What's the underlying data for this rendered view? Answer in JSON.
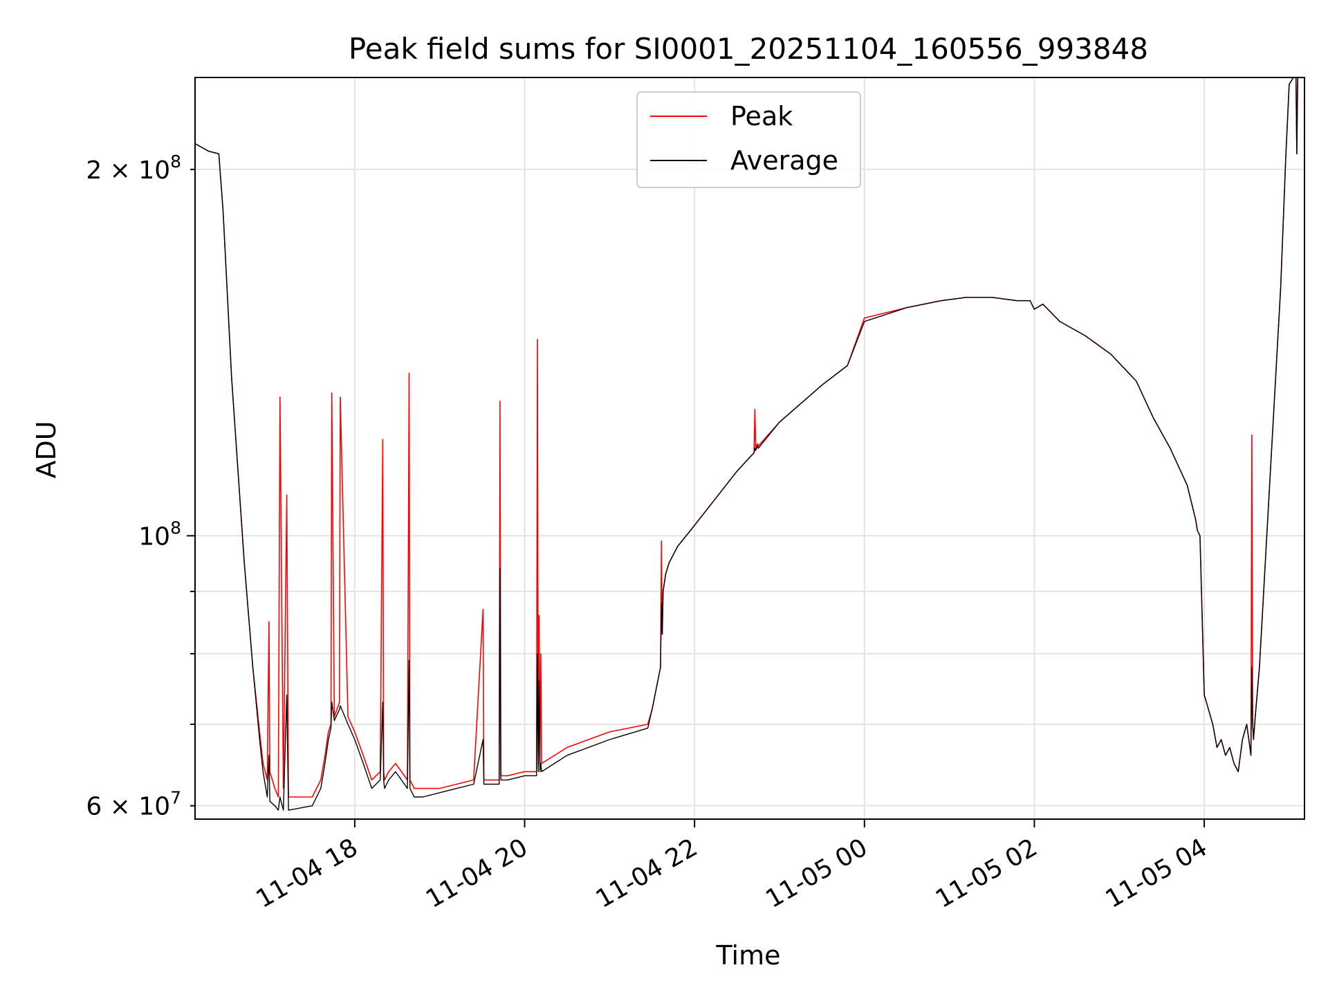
{
  "chart_data": {
    "type": "line",
    "title": "Peak field sums for SI0001_20251104_160556_993848",
    "xlabel": "Time",
    "ylabel": "ADU",
    "yscale": "log",
    "ylim": [
      58500000,
      238000000
    ],
    "xlim_hours": [
      16.12,
      29.18
    ],
    "x_ticks": [
      {
        "hour": 18,
        "label": "11-04 18"
      },
      {
        "hour": 20,
        "label": "11-04 20"
      },
      {
        "hour": 22,
        "label": "11-04 22"
      },
      {
        "hour": 24,
        "label": "11-05 00"
      },
      {
        "hour": 26,
        "label": "11-05 02"
      },
      {
        "hour": 28,
        "label": "11-05 04"
      }
    ],
    "y_major_ticks": [
      {
        "value": 100000000,
        "label_base": "10",
        "label_exp": "8"
      }
    ],
    "y_minor_ticks": [
      {
        "value": 60000000,
        "label_base": "6 × 10",
        "label_exp": "7"
      },
      {
        "value": 70000000,
        "label_base": "",
        "label_exp": ""
      },
      {
        "value": 80000000,
        "label_base": "",
        "label_exp": ""
      },
      {
        "value": 90000000,
        "label_base": "",
        "label_exp": ""
      },
      {
        "value": 200000000,
        "label_base": "2 × 10",
        "label_exp": "8"
      }
    ],
    "grid": true,
    "legend_position": "top-center",
    "series": [
      {
        "name": "Peak",
        "color": "#ff0000",
        "hours": [
          16.12,
          16.28,
          16.4,
          16.45,
          16.55,
          16.7,
          16.8,
          16.88,
          16.92,
          16.97,
          16.99,
          17.0,
          17.06,
          17.1,
          17.12,
          17.16,
          17.2,
          17.22,
          17.5,
          17.6,
          17.65,
          17.69,
          17.72,
          17.73,
          17.76,
          17.82,
          17.83,
          17.92,
          18.0,
          18.1,
          18.2,
          18.3,
          18.33,
          18.34,
          18.35,
          18.4,
          18.48,
          18.55,
          18.62,
          18.64,
          18.65,
          18.7,
          18.8,
          19.0,
          19.2,
          19.4,
          19.51,
          19.52,
          19.53,
          19.6,
          19.7,
          19.71,
          19.72,
          19.8,
          20.0,
          20.14,
          20.15,
          20.16,
          20.17,
          20.18,
          20.19,
          20.2,
          20.5,
          21.0,
          21.45,
          21.5,
          21.6,
          21.61,
          21.62,
          21.63,
          21.66,
          21.7,
          21.8,
          22.0,
          22.5,
          22.7,
          22.71,
          22.72,
          22.73,
          22.74,
          22.75,
          23.0,
          23.5,
          23.8,
          24.0,
          24.5,
          24.9,
          25.2,
          25.5,
          25.8,
          25.95,
          26.0,
          26.1,
          26.3,
          26.6,
          26.9,
          27.2,
          27.4,
          27.6,
          27.8,
          27.9,
          27.92,
          27.95,
          28.0,
          28.1,
          28.15,
          28.2,
          28.25,
          28.3,
          28.35,
          28.4,
          28.45,
          28.5,
          28.55,
          28.56,
          28.57,
          28.58,
          28.6,
          28.65,
          28.7,
          28.8,
          28.9,
          28.96,
          29.0,
          29.05,
          29.07,
          29.08,
          29.09,
          29.1
        ],
        "values": [
          210000000,
          207000000,
          206000000,
          185000000,
          135000000,
          95000000,
          78000000,
          69000000,
          65000000,
          63000000,
          85000000,
          64000000,
          62000000,
          61000000,
          130000000,
          62000000,
          108000000,
          61000000,
          61000000,
          63000000,
          66000000,
          69000000,
          70000000,
          131000000,
          71000000,
          73000000,
          130000000,
          71000000,
          69000000,
          66000000,
          63000000,
          64000000,
          120000000,
          64000000,
          63000000,
          64000000,
          65000000,
          64000000,
          63000000,
          136000000,
          63000000,
          62000000,
          62000000,
          62000000,
          62500000,
          63000000,
          87000000,
          63000000,
          63000000,
          63000000,
          63000000,
          129000000,
          63500000,
          63500000,
          64000000,
          64000000,
          145000000,
          65000000,
          86000000,
          65000000,
          80000000,
          65000000,
          67000000,
          69000000,
          70000000,
          72000000,
          78000000,
          99000000,
          83000000,
          90000000,
          93000000,
          95000000,
          98000000,
          102000000,
          113000000,
          117000000,
          127000000,
          118000000,
          118500000,
          119000000,
          118500000,
          124000000,
          133000000,
          138000000,
          151000000,
          154000000,
          156000000,
          157000000,
          157000000,
          156000000,
          156000000,
          153500000,
          155000000,
          150000000,
          146000000,
          141000000,
          134000000,
          125000000,
          118000000,
          110000000,
          103000000,
          101000000,
          100000000,
          74000000,
          70000000,
          67000000,
          68000000,
          66000000,
          67000000,
          65000000,
          64000000,
          68000000,
          70000000,
          66000000,
          121000000,
          70000000,
          68000000,
          71000000,
          78000000,
          90000000,
          120000000,
          160000000,
          205000000,
          235000000,
          238000000,
          238000000,
          238000000,
          206000000,
          238000000
        ]
      },
      {
        "name": "Average",
        "color": "#000000",
        "hours": [
          16.12,
          16.28,
          16.4,
          16.45,
          16.55,
          16.7,
          16.8,
          16.88,
          16.92,
          16.97,
          16.99,
          17.0,
          17.06,
          17.1,
          17.12,
          17.16,
          17.2,
          17.22,
          17.5,
          17.6,
          17.65,
          17.69,
          17.72,
          17.73,
          17.76,
          17.82,
          17.83,
          17.92,
          18.0,
          18.1,
          18.2,
          18.3,
          18.33,
          18.34,
          18.35,
          18.4,
          18.48,
          18.55,
          18.62,
          18.64,
          18.65,
          18.7,
          18.8,
          19.0,
          19.2,
          19.4,
          19.51,
          19.52,
          19.53,
          19.6,
          19.7,
          19.71,
          19.72,
          19.8,
          20.0,
          20.14,
          20.15,
          20.16,
          20.17,
          20.18,
          20.19,
          20.2,
          20.5,
          21.0,
          21.45,
          21.5,
          21.6,
          21.61,
          21.62,
          21.63,
          21.66,
          21.7,
          21.8,
          22.0,
          22.5,
          22.7,
          22.71,
          22.72,
          22.73,
          22.74,
          22.75,
          23.0,
          23.5,
          23.8,
          24.0,
          24.5,
          24.9,
          25.2,
          25.5,
          25.8,
          25.95,
          26.0,
          26.1,
          26.3,
          26.6,
          26.9,
          27.2,
          27.4,
          27.6,
          27.8,
          27.9,
          27.92,
          27.95,
          28.0,
          28.1,
          28.15,
          28.2,
          28.25,
          28.3,
          28.35,
          28.4,
          28.45,
          28.5,
          28.55,
          28.56,
          28.57,
          28.58,
          28.6,
          28.65,
          28.7,
          28.8,
          28.9,
          28.96,
          29.0,
          29.05,
          29.07,
          29.08,
          29.09,
          29.1
        ],
        "values": [
          210000000,
          207000000,
          206000000,
          185000000,
          135000000,
          95000000,
          78000000,
          68000000,
          64000000,
          61000000,
          66000000,
          60500000,
          60000000,
          59500000,
          61000000,
          59500000,
          74000000,
          59500000,
          60000000,
          62000000,
          65000000,
          68000000,
          69500000,
          73000000,
          70500000,
          72000000,
          72500000,
          70000000,
          68000000,
          65000000,
          62000000,
          63000000,
          73000000,
          63000000,
          62000000,
          63000000,
          64000000,
          63000000,
          62000000,
          79000000,
          62000000,
          61000000,
          61000000,
          61500000,
          62000000,
          62500000,
          68000000,
          62500000,
          62500000,
          62500000,
          62500000,
          94000000,
          63000000,
          63000000,
          63500000,
          63500000,
          80000000,
          64000000,
          76000000,
          64000000,
          65000000,
          64000000,
          66000000,
          68000000,
          69500000,
          72000000,
          78000000,
          88000000,
          83000000,
          90000000,
          93000000,
          95000000,
          98000000,
          102000000,
          113000000,
          117000000,
          118000000,
          117500000,
          118000000,
          118500000,
          118000000,
          124000000,
          133000000,
          138000000,
          150000000,
          154000000,
          156000000,
          157000000,
          157000000,
          156000000,
          156000000,
          153500000,
          155000000,
          150000000,
          146000000,
          141000000,
          134000000,
          125000000,
          118000000,
          110000000,
          103000000,
          101000000,
          100000000,
          74000000,
          70000000,
          67000000,
          68000000,
          66000000,
          67000000,
          65000000,
          64000000,
          68000000,
          70000000,
          66000000,
          78000000,
          70000000,
          68000000,
          71000000,
          78000000,
          90000000,
          120000000,
          160000000,
          205000000,
          235000000,
          238000000,
          238000000,
          238000000,
          206000000,
          238000000
        ]
      }
    ]
  }
}
